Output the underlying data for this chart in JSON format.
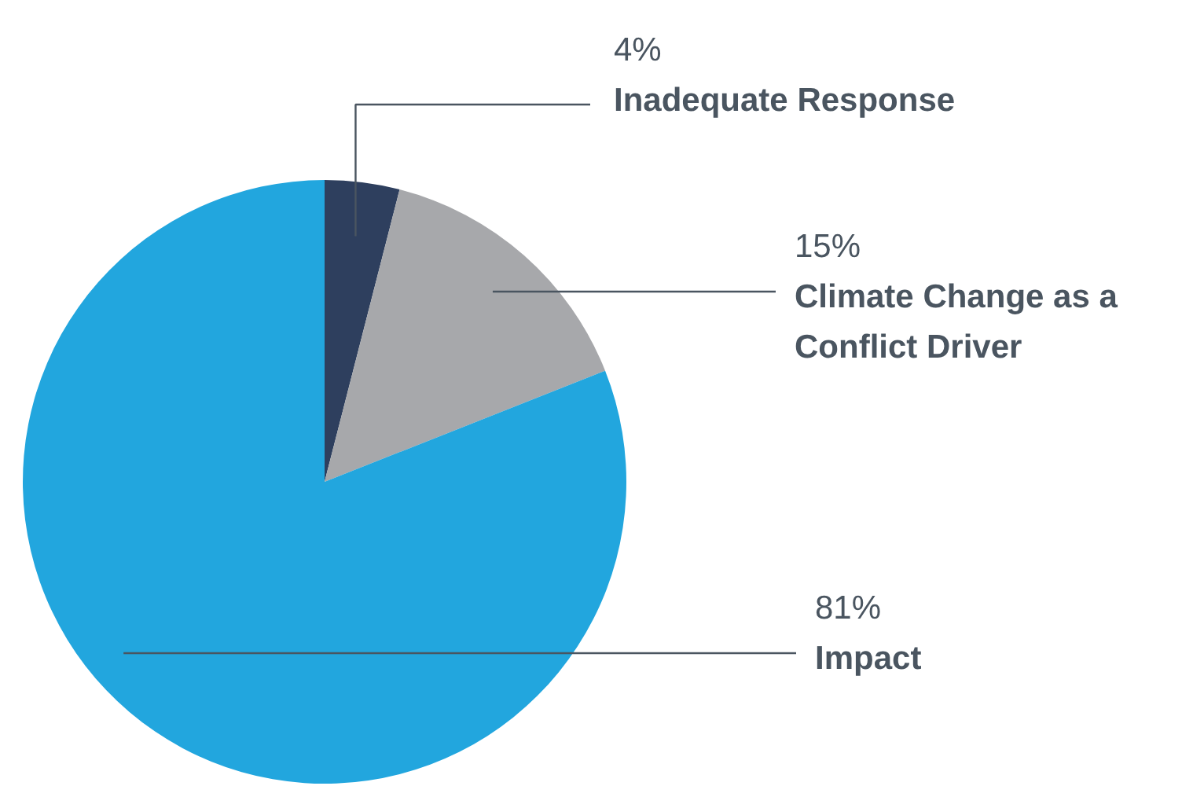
{
  "chart_data": {
    "type": "pie",
    "categories": [
      "Inadequate Response",
      "Climate Change as a Conflict Driver",
      "Impact"
    ],
    "values": [
      4,
      15,
      81
    ],
    "value_labels": [
      "4%",
      "15%",
      "81%"
    ],
    "colors": [
      "#2e3f5e",
      "#a7a8ab",
      "#22a6de"
    ]
  }
}
